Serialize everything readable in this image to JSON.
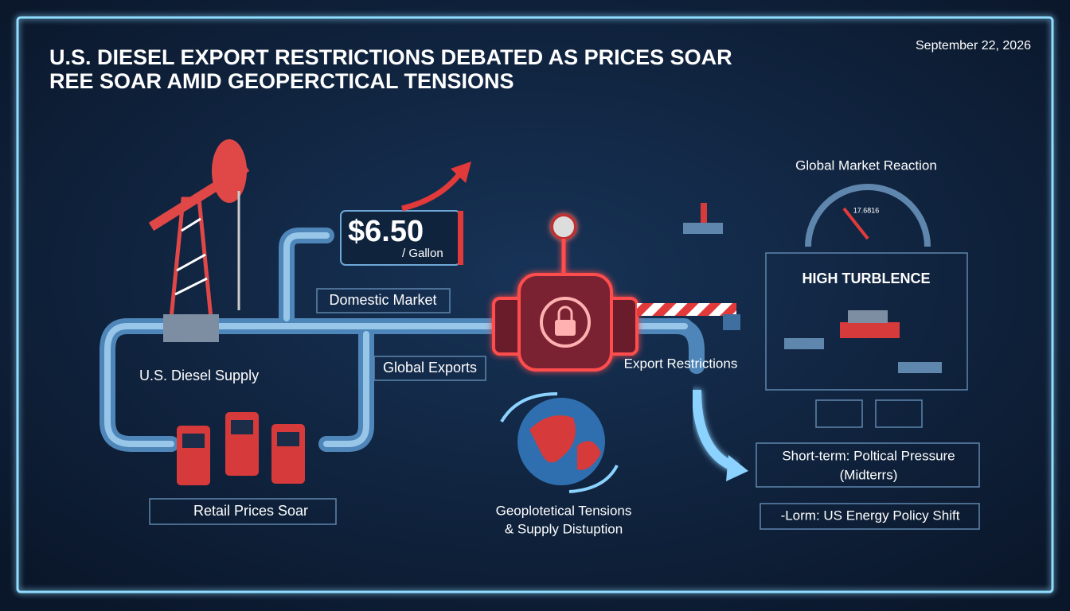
{
  "header": {
    "title_line1": "U.S. DIESEL EXPORT RESTRICTIONS DEBATED AS PRICES SOAR",
    "title_line2": "REE SOAR AMID GEOPERCTICAL TENSIONS",
    "date": "September 22, 2026"
  },
  "price": {
    "amount": "$6.50",
    "unit": "/ Gallon"
  },
  "labels": {
    "domestic": "Domestic Market",
    "supply": "U.S. Diesel Supply",
    "exports": "Global Exports",
    "retail": "Retail Prices Soar",
    "restrictions": "Export Restrictions",
    "geo_line1": "Geoplotetical Tensions",
    "geo_line2": "& Supply Distuption"
  },
  "market": {
    "title": "Global Market Reaction",
    "gauge": "17.6816",
    "turbulence": "HIGH TURBLENCE",
    "short_line1": "Short-term: Poltical Pressure",
    "short_line2": "(Midterrs)",
    "long": "-Lorm: US Energy Policy Shift"
  }
}
